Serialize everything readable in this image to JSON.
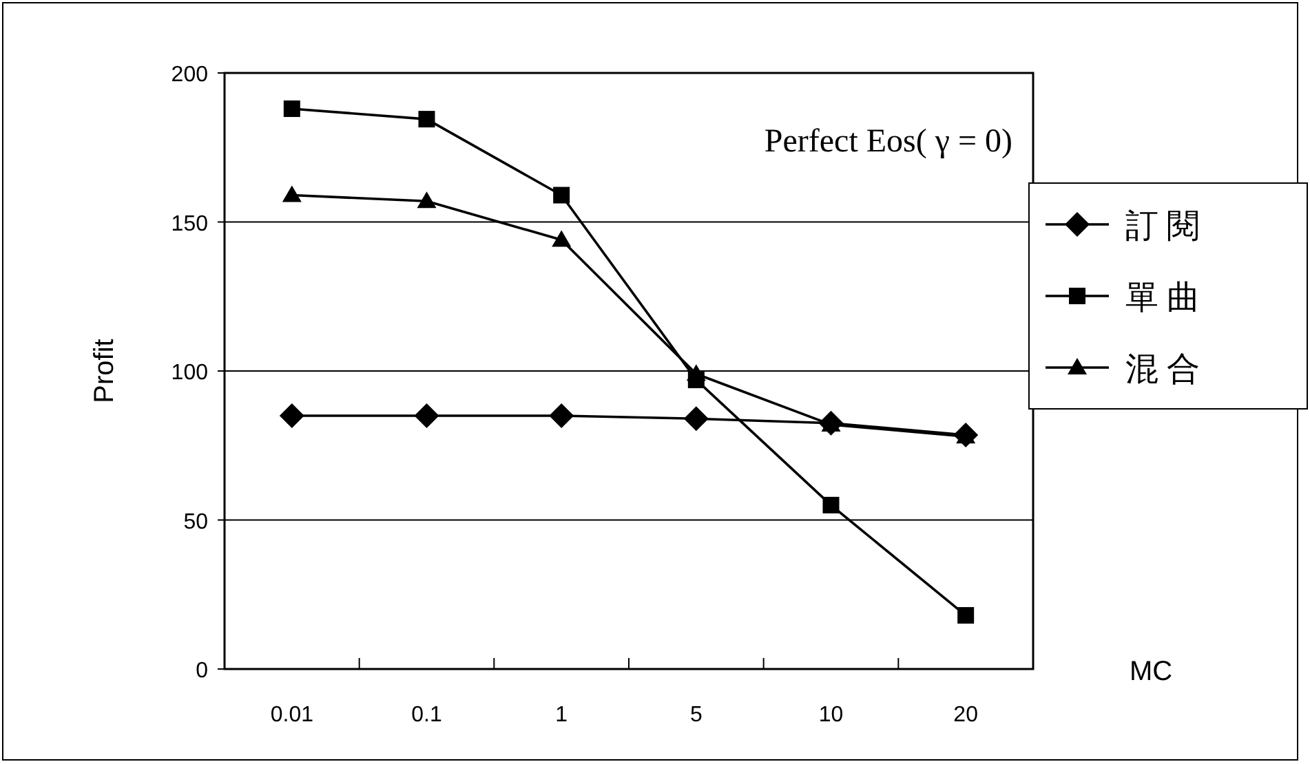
{
  "chart_data": {
    "type": "line",
    "xlabel": "MC",
    "ylabel": "Profit",
    "categories": [
      "0.01",
      "0.1",
      "1",
      "5",
      "10",
      "20"
    ],
    "series": [
      {
        "name": "訂閱",
        "color": "#000000",
        "marker": "diamond",
        "values": [
          85,
          85,
          85,
          84,
          82.5,
          78.5
        ]
      },
      {
        "name": "單曲",
        "color": "#000000",
        "marker": "square",
        "values": [
          188,
          184.5,
          159,
          97,
          55,
          18
        ]
      },
      {
        "name": "混合",
        "color": "#000000",
        "marker": "triangle",
        "values": [
          159,
          157,
          144,
          99,
          82,
          78
        ]
      }
    ],
    "ylim": [
      0,
      200
    ],
    "yticks": [
      0,
      50,
      100,
      150,
      200
    ],
    "grid": "y",
    "legend": "right",
    "annotations": [
      "Perfect Eos( γ = 0)"
    ]
  }
}
